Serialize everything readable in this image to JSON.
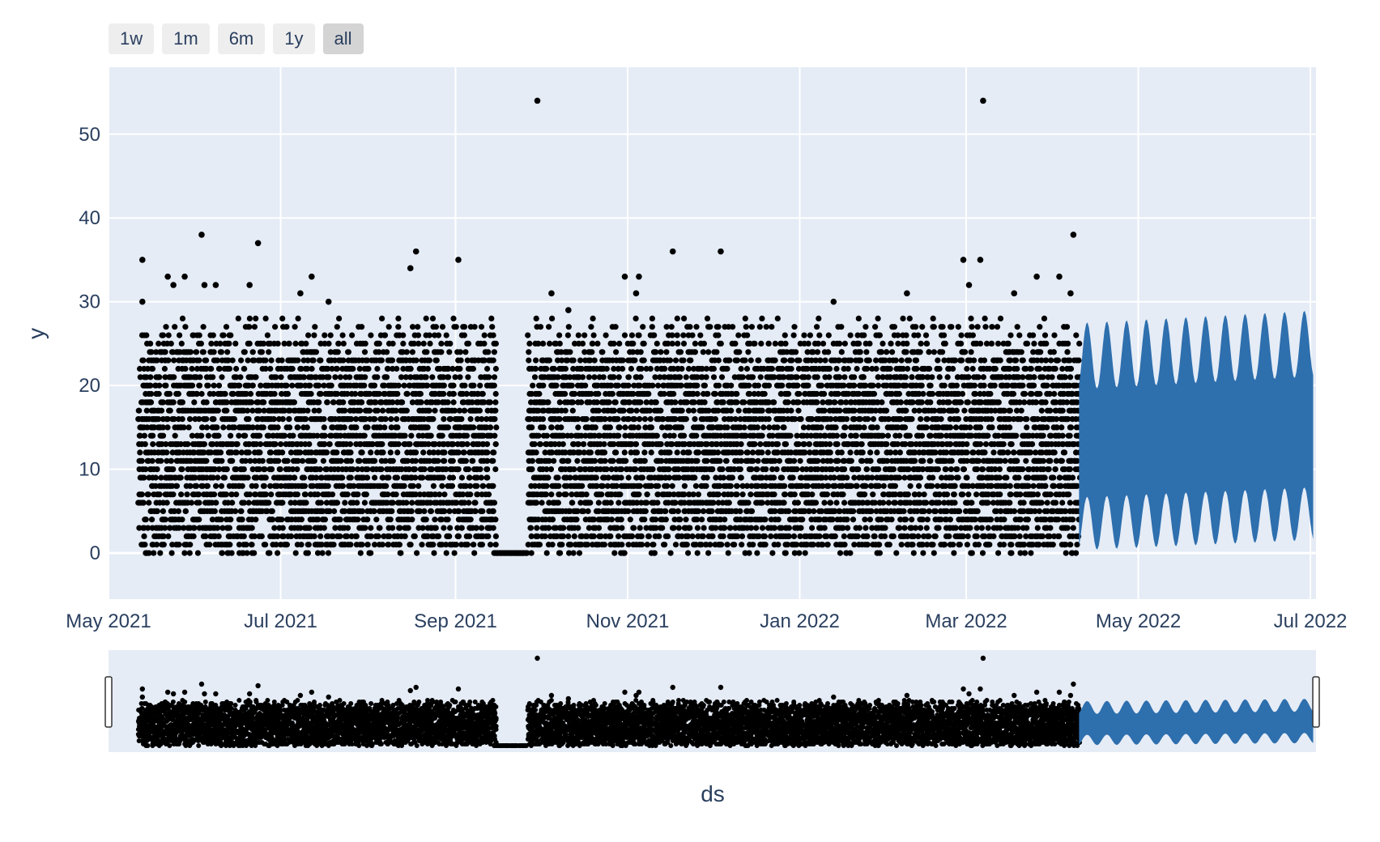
{
  "range_selector": {
    "buttons": [
      {
        "label": "1w",
        "active": false
      },
      {
        "label": "1m",
        "active": false
      },
      {
        "label": "6m",
        "active": false
      },
      {
        "label": "1y",
        "active": false
      },
      {
        "label": "all",
        "active": true
      }
    ]
  },
  "colors": {
    "plot_background": "#e5ecf6",
    "grid": "#ffffff",
    "actual_points": "#000000",
    "forecast": "#2e6fae",
    "text": "#2a3f5f"
  },
  "chart_data": {
    "type": "scatter",
    "title": "",
    "xlabel": "ds",
    "ylabel": "y",
    "xlim": [
      "2021-05-01",
      "2022-07-01"
    ],
    "ylim": [
      -5.5,
      58
    ],
    "grid": true,
    "legend": "none",
    "x_ticks": [
      "2021-05-01",
      "2021-07-01",
      "2021-09-01",
      "2021-11-01",
      "2022-01-01",
      "2022-03-01",
      "2022-05-01",
      "2022-07-01"
    ],
    "x_tick_labels": [
      "May 2021",
      "Jul 2021",
      "Sep 2021",
      "Nov 2021",
      "Jan 2022",
      "Mar 2022",
      "May 2022",
      "Jul 2022"
    ],
    "y_ticks": [
      0,
      10,
      20,
      30,
      40,
      50
    ],
    "y_tick_labels": [
      "0",
      "10",
      "20",
      "30",
      "40",
      "50"
    ],
    "series": [
      {
        "type": "scatter",
        "color": "#000000",
        "description_values_points": "hourly observations, y between 0 and about 28, Apr 2021 - Apr 2022",
        "x_range": [
          "2021-05-12",
          "2022-04-10"
        ],
        "y_range": [
          0,
          28
        ],
        "gap_near_zero": [
          "2021-09-16",
          "2021-09-26"
        ],
        "outliers": [
          {
            "x": "2021-05-13",
            "y": 35
          },
          {
            "x": "2021-05-13",
            "y": 30
          },
          {
            "x": "2021-05-22",
            "y": 33
          },
          {
            "x": "2021-05-24",
            "y": 32
          },
          {
            "x": "2021-05-28",
            "y": 33
          },
          {
            "x": "2021-06-03",
            "y": 38
          },
          {
            "x": "2021-06-04",
            "y": 32
          },
          {
            "x": "2021-06-08",
            "y": 32
          },
          {
            "x": "2021-06-23",
            "y": 37
          },
          {
            "x": "2021-06-20",
            "y": 32
          },
          {
            "x": "2021-07-08",
            "y": 31
          },
          {
            "x": "2021-07-12",
            "y": 33
          },
          {
            "x": "2021-07-18",
            "y": 30
          },
          {
            "x": "2021-08-16",
            "y": 34
          },
          {
            "x": "2021-08-18",
            "y": 36
          },
          {
            "x": "2021-09-02",
            "y": 35
          },
          {
            "x": "2021-09-30",
            "y": 54
          },
          {
            "x": "2021-10-05",
            "y": 31
          },
          {
            "x": "2021-10-11",
            "y": 29
          },
          {
            "x": "2021-10-31",
            "y": 33
          },
          {
            "x": "2021-11-05",
            "y": 33
          },
          {
            "x": "2021-11-04",
            "y": 31
          },
          {
            "x": "2021-11-17",
            "y": 36
          },
          {
            "x": "2021-12-04",
            "y": 36
          },
          {
            "x": "2022-01-13",
            "y": 30
          },
          {
            "x": "2022-02-08",
            "y": 31
          },
          {
            "x": "2022-02-28",
            "y": 35
          },
          {
            "x": "2022-03-02",
            "y": 32
          },
          {
            "x": "2022-03-06",
            "y": 35
          },
          {
            "x": "2022-03-07",
            "y": 54
          },
          {
            "x": "2022-03-18",
            "y": 31
          },
          {
            "x": "2022-03-26",
            "y": 33
          },
          {
            "x": "2022-04-03",
            "y": 33
          },
          {
            "x": "2022-04-08",
            "y": 38
          },
          {
            "x": "2022-04-07",
            "y": 31
          }
        ]
      },
      {
        "type": "area",
        "color": "#2e6fae",
        "description_values_band": "forecast band (upper/lower), Apr 2022 - Jul 2022",
        "x_range": [
          "2022-04-10",
          "2022-07-02"
        ],
        "upper_range": [
          23,
          30
        ],
        "lower_range": [
          3,
          8
        ]
      }
    ],
    "rangeslider": true
  }
}
